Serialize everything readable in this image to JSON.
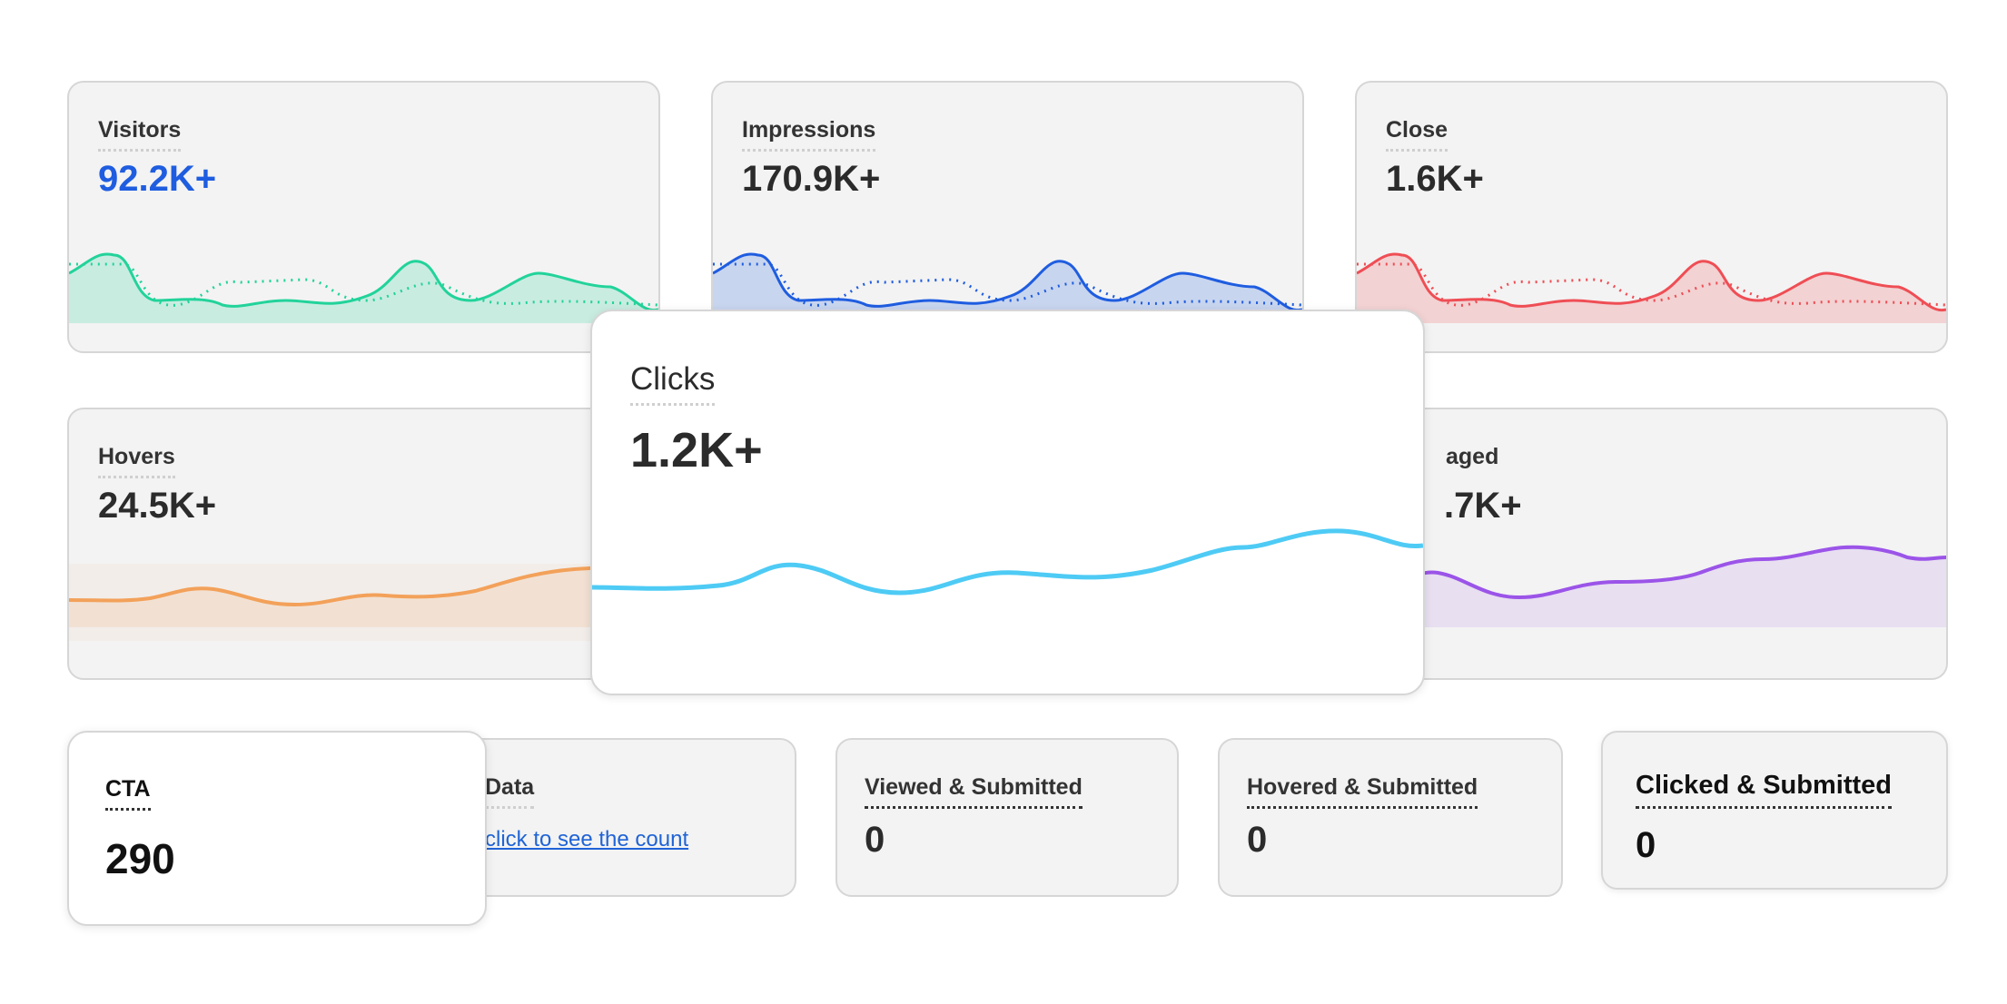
{
  "colors": {
    "visitors": "#22d39a",
    "impressions": "#1f5de0",
    "close": "#ef4e55",
    "hovers": "#f3a15a",
    "engaged": "#9b54e8",
    "clicks": "#4ecbf5",
    "link": "#1f63d6"
  },
  "cards": {
    "visitors": {
      "label": "Visitors",
      "value": "92.2K+",
      "icon": "area-sparkline"
    },
    "impressions": {
      "label": "Impressions",
      "value": "170.9K+",
      "icon": "area-sparkline"
    },
    "close": {
      "label": "Close",
      "value": "1.6K+",
      "icon": "area-sparkline"
    },
    "hovers": {
      "label": "Hovers",
      "value": "24.5K+",
      "icon": "area-sparkline"
    },
    "engaged": {
      "label": "aged",
      "value": ".7K+",
      "icon": "area-sparkline"
    },
    "clicks": {
      "label": "Clicks",
      "value": "1.2K+",
      "icon": "line-sparkline"
    }
  },
  "bottom": {
    "cta": {
      "label": "CTA",
      "value": "290"
    },
    "data": {
      "label": "Data",
      "link": "click to see the count"
    },
    "viewed_submitted": {
      "label": "Viewed & Submitted",
      "value": "0"
    },
    "hovered_submitted": {
      "label": "Hovered & Submitted",
      "value": "0"
    },
    "clicked_submitted": {
      "label": "Clicked & Submitted",
      "value": "0"
    }
  }
}
